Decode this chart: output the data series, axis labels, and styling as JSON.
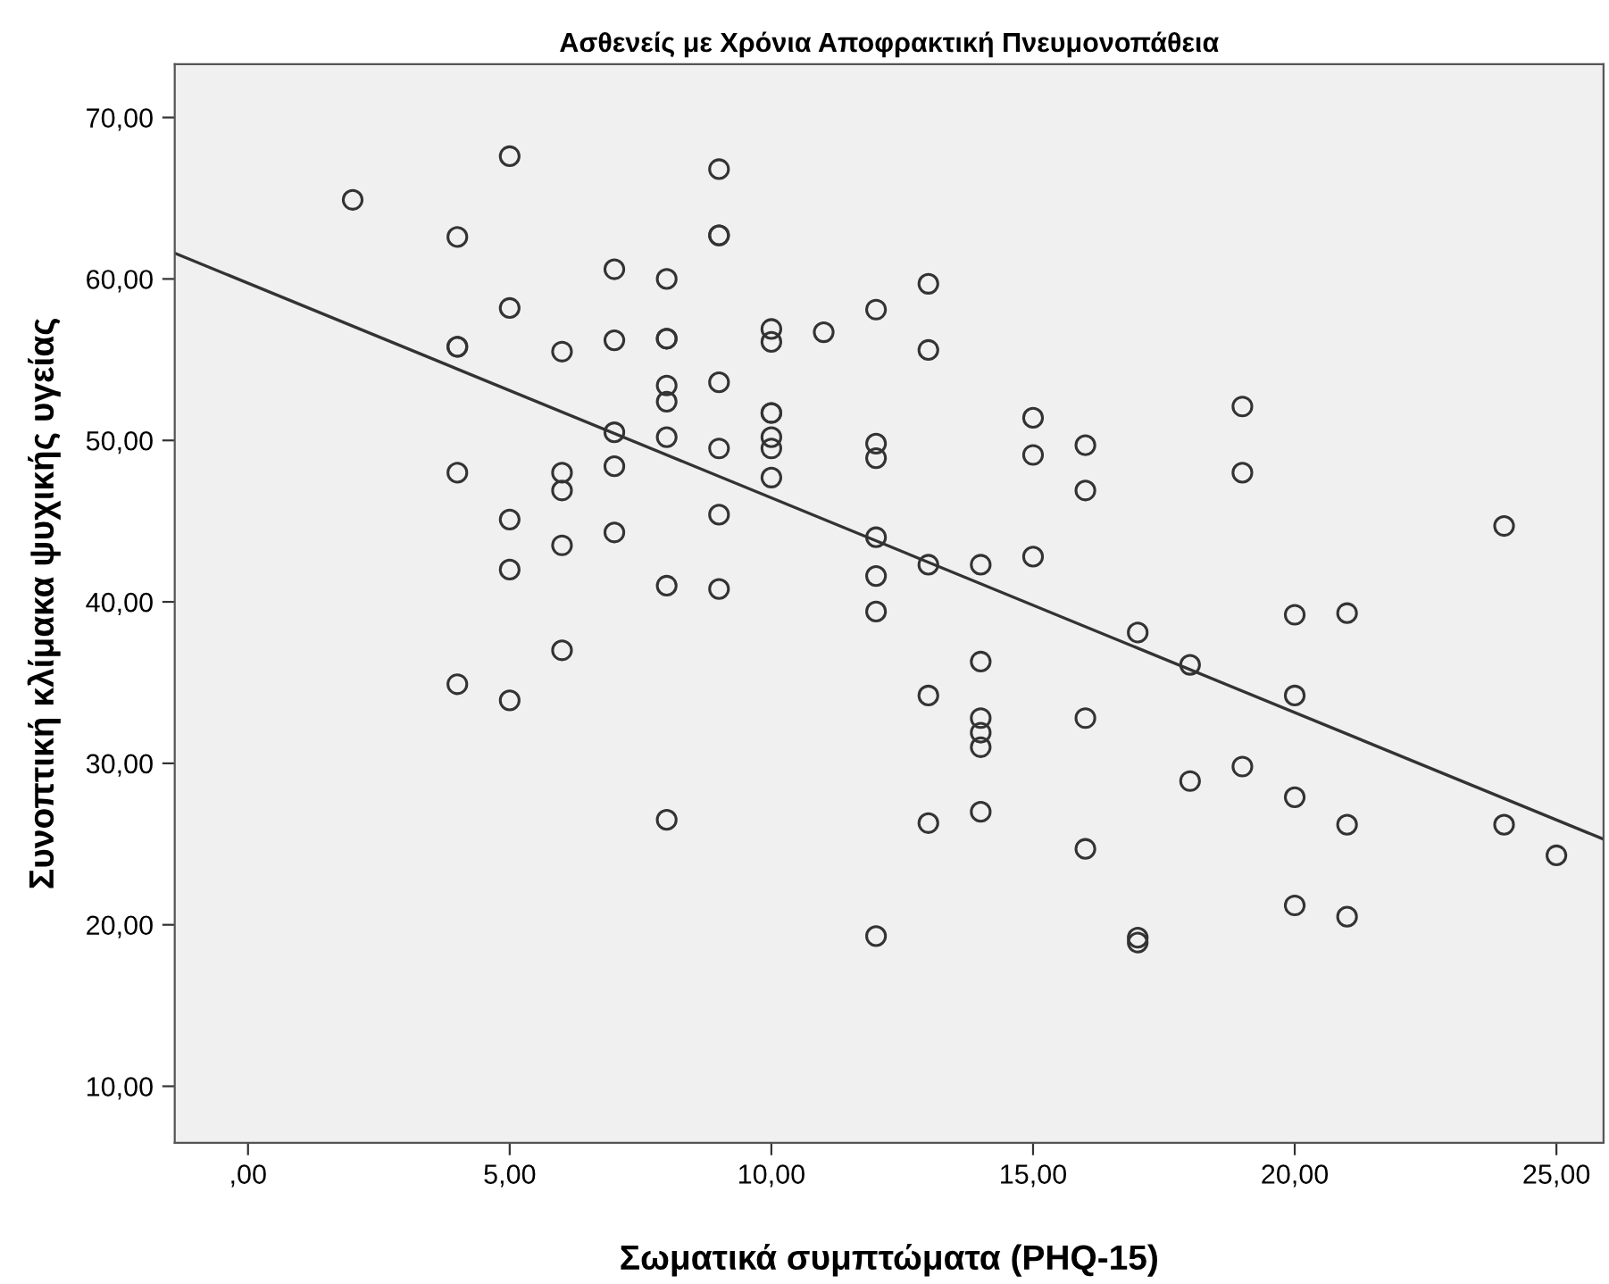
{
  "chart_data": {
    "type": "scatter",
    "title": "Ασθενείς με Χρόνια Αποφρακτική Πνευμονοπάθεια",
    "xlabel": "Σωματικά συμπτώματα (PHQ-15)",
    "ylabel": "Συνοπτική κλίμακα ψυχικής υγείας",
    "xlim": [
      -1.4,
      25.9
    ],
    "ylim": [
      6.5,
      73.3
    ],
    "xticks": [
      {
        "value": 0,
        "label": ",00"
      },
      {
        "value": 5,
        "label": "5,00"
      },
      {
        "value": 10,
        "label": "10,00"
      },
      {
        "value": 15,
        "label": "15,00"
      },
      {
        "value": 20,
        "label": "20,00"
      },
      {
        "value": 25,
        "label": "25,00"
      }
    ],
    "yticks": [
      {
        "value": 10,
        "label": "10,00"
      },
      {
        "value": 20,
        "label": "20,00"
      },
      {
        "value": 30,
        "label": "30,00"
      },
      {
        "value": 40,
        "label": "40,00"
      },
      {
        "value": 50,
        "label": "50,00"
      },
      {
        "value": 60,
        "label": "60,00"
      },
      {
        "value": 70,
        "label": "70,00"
      }
    ],
    "grid": false,
    "legend": false,
    "series": [
      {
        "marker": "circle",
        "color": "#333333",
        "x": [
          2,
          4,
          4,
          4,
          4,
          4,
          5,
          5,
          5,
          5,
          5,
          6,
          6,
          6,
          6,
          6,
          7,
          7,
          7,
          7,
          7,
          8,
          8,
          8,
          8,
          8,
          8,
          8,
          8,
          9,
          9,
          9,
          9,
          9,
          9,
          9,
          10,
          10,
          10,
          10,
          10,
          10,
          10,
          11,
          12,
          12,
          12,
          12,
          12,
          12,
          12,
          13,
          13,
          13,
          13,
          13,
          14,
          14,
          14,
          14,
          14,
          14,
          15,
          15,
          15,
          16,
          16,
          16,
          16,
          17,
          17,
          17,
          18,
          18,
          19,
          19,
          19,
          20,
          20,
          20,
          20,
          21,
          21,
          21,
          24,
          24,
          25
        ],
        "values": [
          64.9,
          62.6,
          55.8,
          55.8,
          48.0,
          34.9,
          67.6,
          58.2,
          45.1,
          42.0,
          33.9,
          55.5,
          48.0,
          46.9,
          43.5,
          37.0,
          60.6,
          56.2,
          50.5,
          48.4,
          44.3,
          60.0,
          56.3,
          56.3,
          53.4,
          52.4,
          50.2,
          41.0,
          26.5,
          66.8,
          62.7,
          62.7,
          53.6,
          49.5,
          45.4,
          40.8,
          56.9,
          56.1,
          51.7,
          51.7,
          50.2,
          49.5,
          47.7,
          56.7,
          58.1,
          49.8,
          48.9,
          44.0,
          41.6,
          39.4,
          19.3,
          59.7,
          55.6,
          42.3,
          34.2,
          26.3,
          42.3,
          36.3,
          32.8,
          31.9,
          31.0,
          27.0,
          51.4,
          49.1,
          42.8,
          49.7,
          46.9,
          32.8,
          24.7,
          38.1,
          19.2,
          18.9,
          36.1,
          28.9,
          52.1,
          48.0,
          29.8,
          39.2,
          34.2,
          27.9,
          21.2,
          39.3,
          26.2,
          20.5,
          44.7,
          26.2,
          24.3
        ]
      },
      {
        "type": "line",
        "color": "#333333",
        "line_style": "solid",
        "x": [
          -1.4,
          25.9
        ],
        "values": [
          61.6,
          25.3
        ]
      }
    ]
  }
}
